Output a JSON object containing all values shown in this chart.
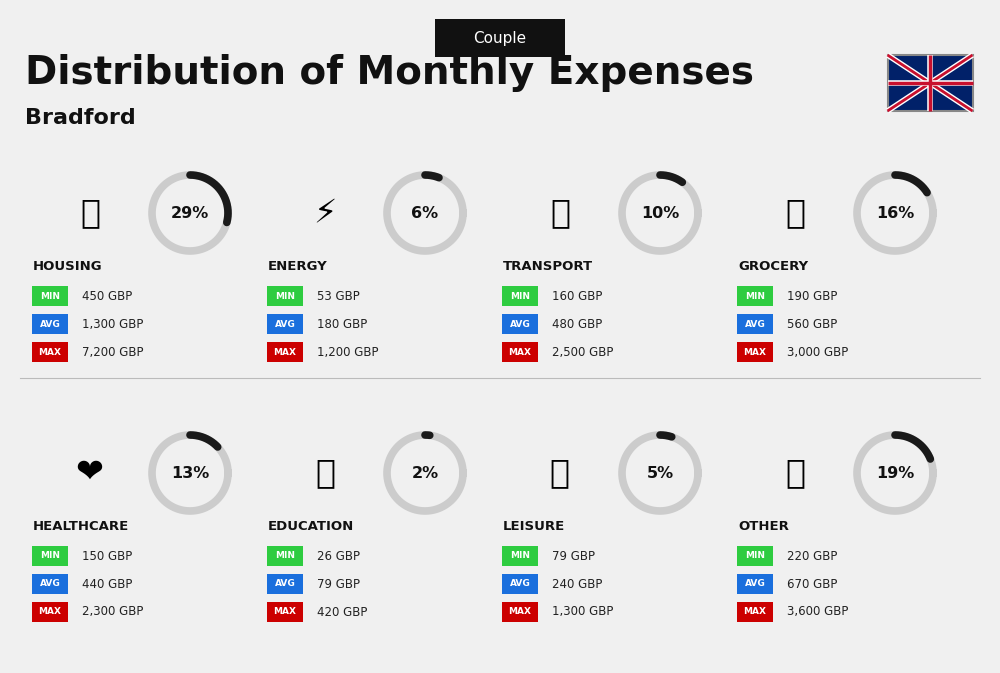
{
  "title": "Distribution of Monthly Expenses",
  "subtitle": "Bradford",
  "tab_label": "Couple",
  "bg_color": "#f0f0f0",
  "categories": [
    {
      "name": "HOUSING",
      "percent": 29,
      "min_val": "450 GBP",
      "avg_val": "1,300 GBP",
      "max_val": "7,200 GBP",
      "col": 0,
      "row": 0
    },
    {
      "name": "ENERGY",
      "percent": 6,
      "min_val": "53 GBP",
      "avg_val": "180 GBP",
      "max_val": "1,200 GBP",
      "col": 1,
      "row": 0
    },
    {
      "name": "TRANSPORT",
      "percent": 10,
      "min_val": "160 GBP",
      "avg_val": "480 GBP",
      "max_val": "2,500 GBP",
      "col": 2,
      "row": 0
    },
    {
      "name": "GROCERY",
      "percent": 16,
      "min_val": "190 GBP",
      "avg_val": "560 GBP",
      "max_val": "3,000 GBP",
      "col": 3,
      "row": 0
    },
    {
      "name": "HEALTHCARE",
      "percent": 13,
      "min_val": "150 GBP",
      "avg_val": "440 GBP",
      "max_val": "2,300 GBP",
      "col": 0,
      "row": 1
    },
    {
      "name": "EDUCATION",
      "percent": 2,
      "min_val": "26 GBP",
      "avg_val": "79 GBP",
      "max_val": "420 GBP",
      "col": 1,
      "row": 1
    },
    {
      "name": "LEISURE",
      "percent": 5,
      "min_val": "79 GBP",
      "avg_val": "240 GBP",
      "max_val": "1,300 GBP",
      "col": 2,
      "row": 1
    },
    {
      "name": "OTHER",
      "percent": 19,
      "min_val": "220 GBP",
      "avg_val": "670 GBP",
      "max_val": "3,600 GBP",
      "col": 3,
      "row": 1
    }
  ],
  "min_color": "#2ecc40",
  "avg_color": "#1a6fdd",
  "max_color": "#cc0000",
  "label_color": "#ffffff",
  "category_name_color": "#111111",
  "value_color": "#222222",
  "donut_fill_color": "#1a1a1a",
  "donut_bg_color": "#cccccc",
  "donut_text_color": "#111111",
  "title_color": "#111111",
  "subtitle_color": "#111111",
  "tab_bg": "#111111",
  "tab_text_color": "#ffffff"
}
